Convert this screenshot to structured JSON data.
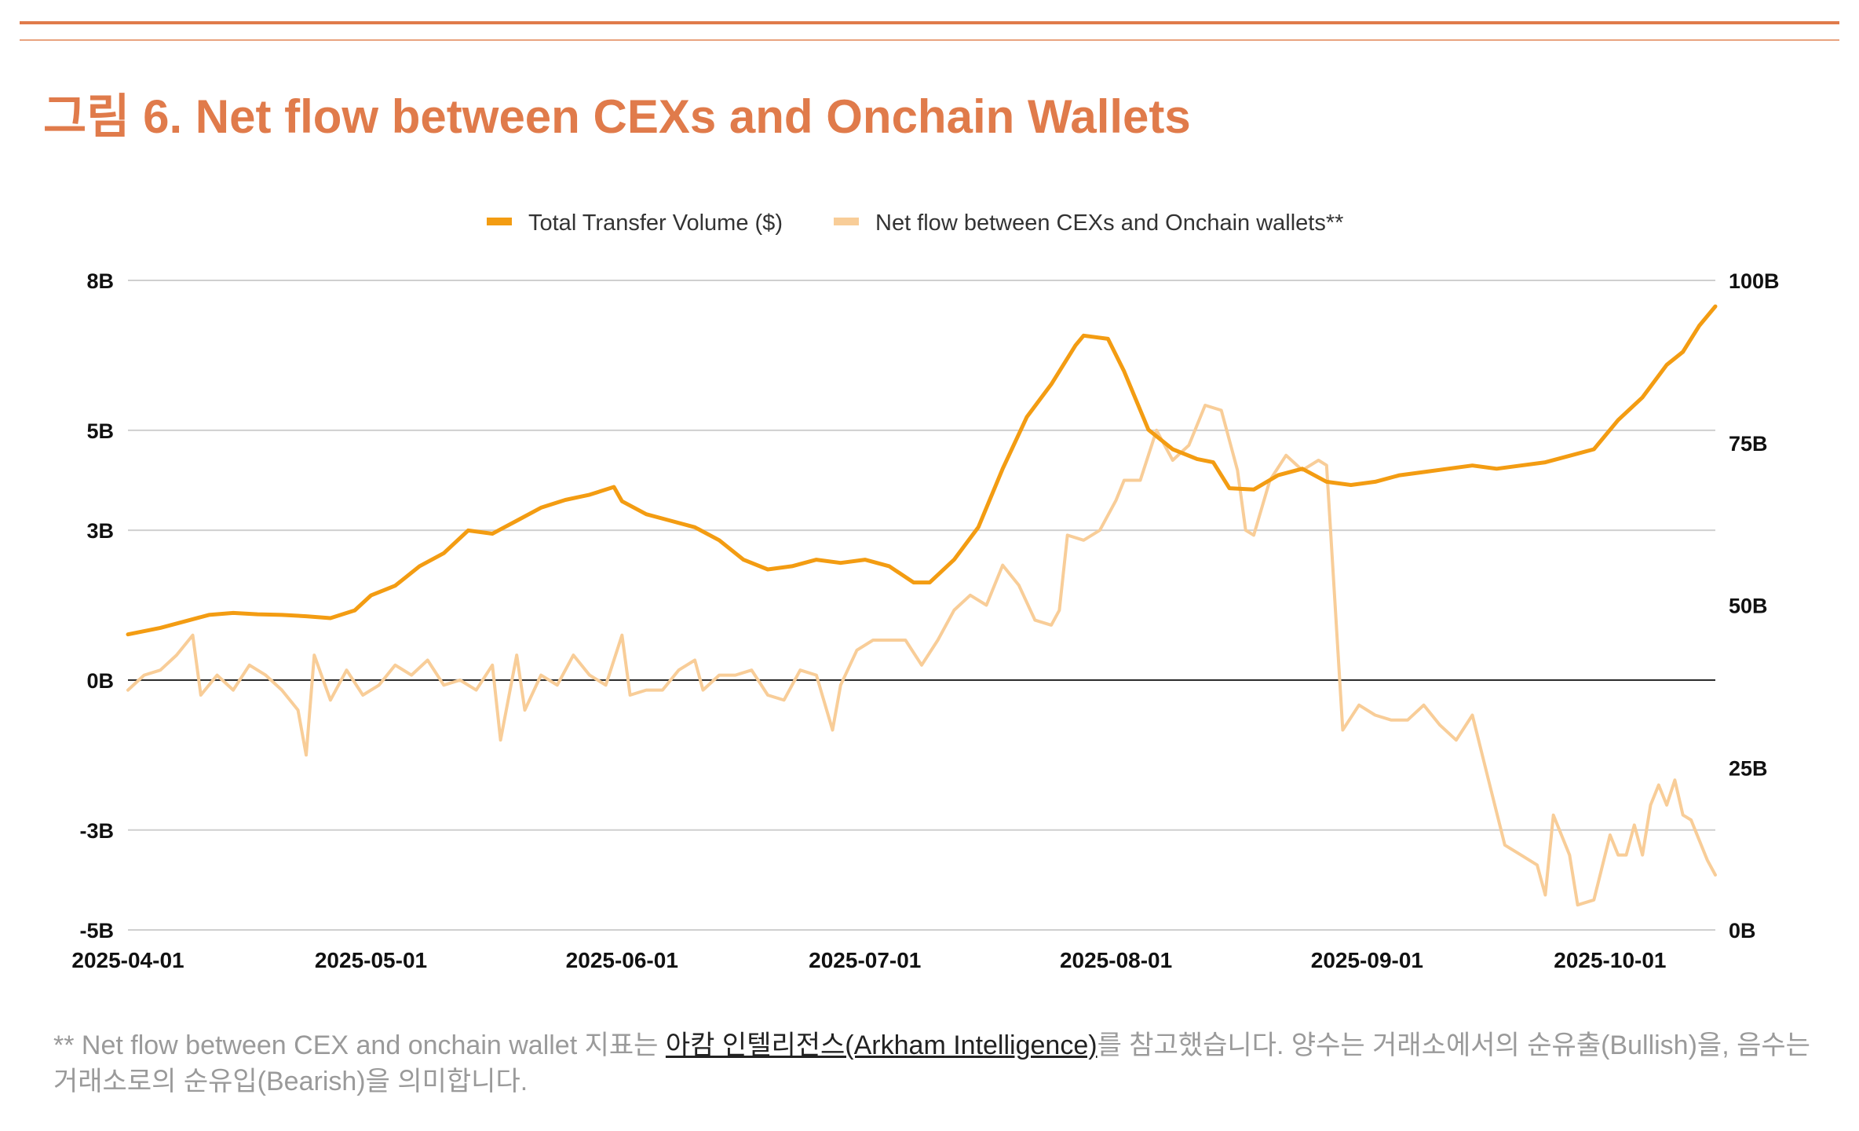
{
  "title": "그림 6. Net flow between CEXs and Onchain Wallets",
  "colors": {
    "accent": "#E07B4B",
    "volume": "#F39C12",
    "netflow": "#F8CD98",
    "grid": "#cfcfcf",
    "zero": "#222222"
  },
  "footnote": {
    "prefix": "** Net flow between CEX and onchain wallet 지표는 ",
    "link": "아캄 인텔리전스(Arkham Intelligence)",
    "suffix": "를 참고했습니다. 양수는 거래소에서의 순유출(Bullish)을, 음수는 거래소로의 순유입(Bearish)을 의미합니다."
  },
  "chart_data": {
    "type": "line",
    "legend": {
      "position": "top-center",
      "entries": [
        "Total Transfer Volume ($)",
        "Net flow between CEXs and Onchain wallets**"
      ]
    },
    "x_range": [
      "2025-04-01",
      "2025-10-14"
    ],
    "x_ticks": [
      "2025-04-01",
      "2025-05-01",
      "2025-06-01",
      "2025-07-01",
      "2025-08-01",
      "2025-09-01",
      "2025-10-01"
    ],
    "y_left": {
      "min": -5,
      "max": 8,
      "ticks": [
        -5,
        -3,
        0,
        3,
        5,
        8
      ],
      "tick_labels": [
        "-5B",
        "-3B",
        "0B",
        "3B",
        "5B",
        "8B"
      ]
    },
    "y_right": {
      "min": 0,
      "max": 100,
      "ticks": [
        0,
        25,
        50,
        75,
        100
      ],
      "tick_labels": [
        "0B",
        "25B",
        "50B",
        "75B",
        "100B"
      ]
    },
    "grid": true,
    "series": [
      {
        "name": "Total Transfer Volume ($)",
        "axis": "right",
        "points": [
          [
            "2025-04-01",
            45.5
          ],
          [
            "2025-04-05",
            46.5
          ],
          [
            "2025-04-08",
            47.5
          ],
          [
            "2025-04-11",
            48.5
          ],
          [
            "2025-04-14",
            48.8
          ],
          [
            "2025-04-17",
            48.6
          ],
          [
            "2025-04-20",
            48.5
          ],
          [
            "2025-04-23",
            48.3
          ],
          [
            "2025-04-26",
            48
          ],
          [
            "2025-04-29",
            49.2
          ],
          [
            "2025-05-01",
            51.5
          ],
          [
            "2025-05-04",
            53
          ],
          [
            "2025-05-07",
            56
          ],
          [
            "2025-05-10",
            58
          ],
          [
            "2025-05-13",
            61.5
          ],
          [
            "2025-05-16",
            61
          ],
          [
            "2025-05-19",
            63
          ],
          [
            "2025-05-22",
            65
          ],
          [
            "2025-05-25",
            66.2
          ],
          [
            "2025-05-28",
            67
          ],
          [
            "2025-05-31",
            68.2
          ],
          [
            "2025-06-01",
            66
          ],
          [
            "2025-06-04",
            64
          ],
          [
            "2025-06-07",
            63
          ],
          [
            "2025-06-10",
            62
          ],
          [
            "2025-06-13",
            60
          ],
          [
            "2025-06-16",
            57
          ],
          [
            "2025-06-19",
            55.5
          ],
          [
            "2025-06-22",
            56
          ],
          [
            "2025-06-25",
            57
          ],
          [
            "2025-06-28",
            56.5
          ],
          [
            "2025-07-01",
            57
          ],
          [
            "2025-07-04",
            56
          ],
          [
            "2025-07-07",
            53.5
          ],
          [
            "2025-07-09",
            53.5
          ],
          [
            "2025-07-12",
            57
          ],
          [
            "2025-07-15",
            62
          ],
          [
            "2025-07-18",
            71
          ],
          [
            "2025-07-21",
            79
          ],
          [
            "2025-07-24",
            84
          ],
          [
            "2025-07-27",
            90
          ],
          [
            "2025-07-28",
            91.5
          ],
          [
            "2025-07-31",
            91
          ],
          [
            "2025-08-02",
            86
          ],
          [
            "2025-08-05",
            77
          ],
          [
            "2025-08-08",
            74
          ],
          [
            "2025-08-11",
            72.5
          ],
          [
            "2025-08-13",
            72
          ],
          [
            "2025-08-15",
            68
          ],
          [
            "2025-08-18",
            67.8
          ],
          [
            "2025-08-21",
            70
          ],
          [
            "2025-08-24",
            71
          ],
          [
            "2025-08-27",
            69
          ],
          [
            "2025-08-30",
            68.5
          ],
          [
            "2025-09-02",
            69
          ],
          [
            "2025-09-05",
            70
          ],
          [
            "2025-09-08",
            70.5
          ],
          [
            "2025-09-11",
            71
          ],
          [
            "2025-09-14",
            71.5
          ],
          [
            "2025-09-17",
            71
          ],
          [
            "2025-09-20",
            71.5
          ],
          [
            "2025-09-23",
            72
          ],
          [
            "2025-09-26",
            73
          ],
          [
            "2025-09-29",
            74
          ],
          [
            "2025-10-02",
            78.5
          ],
          [
            "2025-10-05",
            82
          ],
          [
            "2025-10-08",
            87
          ],
          [
            "2025-10-10",
            89
          ],
          [
            "2025-10-12",
            93
          ],
          [
            "2025-10-14",
            96
          ]
        ]
      },
      {
        "name": "Net flow between CEXs and Onchain wallets**",
        "axis": "left",
        "points": [
          [
            "2025-04-01",
            -0.2
          ],
          [
            "2025-04-03",
            0.1
          ],
          [
            "2025-04-05",
            0.2
          ],
          [
            "2025-04-07",
            0.5
          ],
          [
            "2025-04-09",
            0.9
          ],
          [
            "2025-04-10",
            -0.3
          ],
          [
            "2025-04-12",
            0.1
          ],
          [
            "2025-04-14",
            -0.2
          ],
          [
            "2025-04-16",
            0.3
          ],
          [
            "2025-04-18",
            0.1
          ],
          [
            "2025-04-20",
            -0.2
          ],
          [
            "2025-04-22",
            -0.6
          ],
          [
            "2025-04-23",
            -1.5
          ],
          [
            "2025-04-24",
            0.5
          ],
          [
            "2025-04-26",
            -0.4
          ],
          [
            "2025-04-28",
            0.2
          ],
          [
            "2025-04-30",
            -0.3
          ],
          [
            "2025-05-02",
            -0.1
          ],
          [
            "2025-05-04",
            0.3
          ],
          [
            "2025-05-06",
            0.1
          ],
          [
            "2025-05-08",
            0.4
          ],
          [
            "2025-05-10",
            -0.1
          ],
          [
            "2025-05-12",
            0
          ],
          [
            "2025-05-14",
            -0.2
          ],
          [
            "2025-05-16",
            0.3
          ],
          [
            "2025-05-17",
            -1.2
          ],
          [
            "2025-05-19",
            0.5
          ],
          [
            "2025-05-20",
            -0.6
          ],
          [
            "2025-05-22",
            0.1
          ],
          [
            "2025-05-24",
            -0.1
          ],
          [
            "2025-05-26",
            0.5
          ],
          [
            "2025-05-28",
            0.1
          ],
          [
            "2025-05-30",
            -0.1
          ],
          [
            "2025-06-01",
            0.9
          ],
          [
            "2025-06-02",
            -0.3
          ],
          [
            "2025-06-04",
            -0.2
          ],
          [
            "2025-06-06",
            -0.2
          ],
          [
            "2025-06-08",
            0.2
          ],
          [
            "2025-06-10",
            0.4
          ],
          [
            "2025-06-11",
            -0.2
          ],
          [
            "2025-06-13",
            0.1
          ],
          [
            "2025-06-15",
            0.1
          ],
          [
            "2025-06-17",
            0.2
          ],
          [
            "2025-06-19",
            -0.3
          ],
          [
            "2025-06-21",
            -0.4
          ],
          [
            "2025-06-23",
            0.2
          ],
          [
            "2025-06-25",
            0.1
          ],
          [
            "2025-06-27",
            -1
          ],
          [
            "2025-06-28",
            -0.1
          ],
          [
            "2025-06-30",
            0.6
          ],
          [
            "2025-07-02",
            0.8
          ],
          [
            "2025-07-04",
            0.8
          ],
          [
            "2025-07-06",
            0.8
          ],
          [
            "2025-07-08",
            0.3
          ],
          [
            "2025-07-10",
            0.8
          ],
          [
            "2025-07-12",
            1.4
          ],
          [
            "2025-07-14",
            1.7
          ],
          [
            "2025-07-16",
            1.5
          ],
          [
            "2025-07-18",
            2.3
          ],
          [
            "2025-07-20",
            1.9
          ],
          [
            "2025-07-22",
            1.2
          ],
          [
            "2025-07-24",
            1.1
          ],
          [
            "2025-07-25",
            1.4
          ],
          [
            "2025-07-26",
            2.9
          ],
          [
            "2025-07-28",
            2.8
          ],
          [
            "2025-07-30",
            3.0
          ],
          [
            "2025-08-01",
            3.6
          ],
          [
            "2025-08-02",
            4.0
          ],
          [
            "2025-08-04",
            4.0
          ],
          [
            "2025-08-06",
            5.0
          ],
          [
            "2025-08-08",
            4.4
          ],
          [
            "2025-08-10",
            4.7
          ],
          [
            "2025-08-12",
            5.5
          ],
          [
            "2025-08-14",
            5.4
          ],
          [
            "2025-08-16",
            4.2
          ],
          [
            "2025-08-17",
            3.0
          ],
          [
            "2025-08-18",
            2.9
          ],
          [
            "2025-08-20",
            4.0
          ],
          [
            "2025-08-22",
            4.5
          ],
          [
            "2025-08-24",
            4.2
          ],
          [
            "2025-08-26",
            4.4
          ],
          [
            "2025-08-27",
            4.3
          ],
          [
            "2025-08-29",
            -1.0
          ],
          [
            "2025-08-31",
            -0.5
          ],
          [
            "2025-09-02",
            -0.7
          ],
          [
            "2025-09-04",
            -0.8
          ],
          [
            "2025-09-06",
            -0.8
          ],
          [
            "2025-09-08",
            -0.5
          ],
          [
            "2025-09-10",
            -0.9
          ],
          [
            "2025-09-12",
            -1.2
          ],
          [
            "2025-09-14",
            -0.7
          ],
          [
            "2025-09-16",
            -2.0
          ],
          [
            "2025-09-18",
            -3.3
          ],
          [
            "2025-09-20",
            -3.5
          ],
          [
            "2025-09-22",
            -3.7
          ],
          [
            "2025-09-23",
            -4.3
          ],
          [
            "2025-09-24",
            -2.7
          ],
          [
            "2025-09-26",
            -3.5
          ],
          [
            "2025-09-27",
            -4.5
          ],
          [
            "2025-09-29",
            -4.4
          ],
          [
            "2025-10-01",
            -3.1
          ],
          [
            "2025-10-02",
            -3.5
          ],
          [
            "2025-10-03",
            -3.5
          ],
          [
            "2025-10-04",
            -2.9
          ],
          [
            "2025-10-05",
            -3.5
          ],
          [
            "2025-10-06",
            -2.5
          ],
          [
            "2025-10-07",
            -2.1
          ],
          [
            "2025-10-08",
            -2.5
          ],
          [
            "2025-10-09",
            -2.0
          ],
          [
            "2025-10-10",
            -2.7
          ],
          [
            "2025-10-11",
            -2.8
          ],
          [
            "2025-10-12",
            -3.2
          ],
          [
            "2025-10-13",
            -3.6
          ],
          [
            "2025-10-14",
            -3.9
          ]
        ]
      }
    ]
  }
}
